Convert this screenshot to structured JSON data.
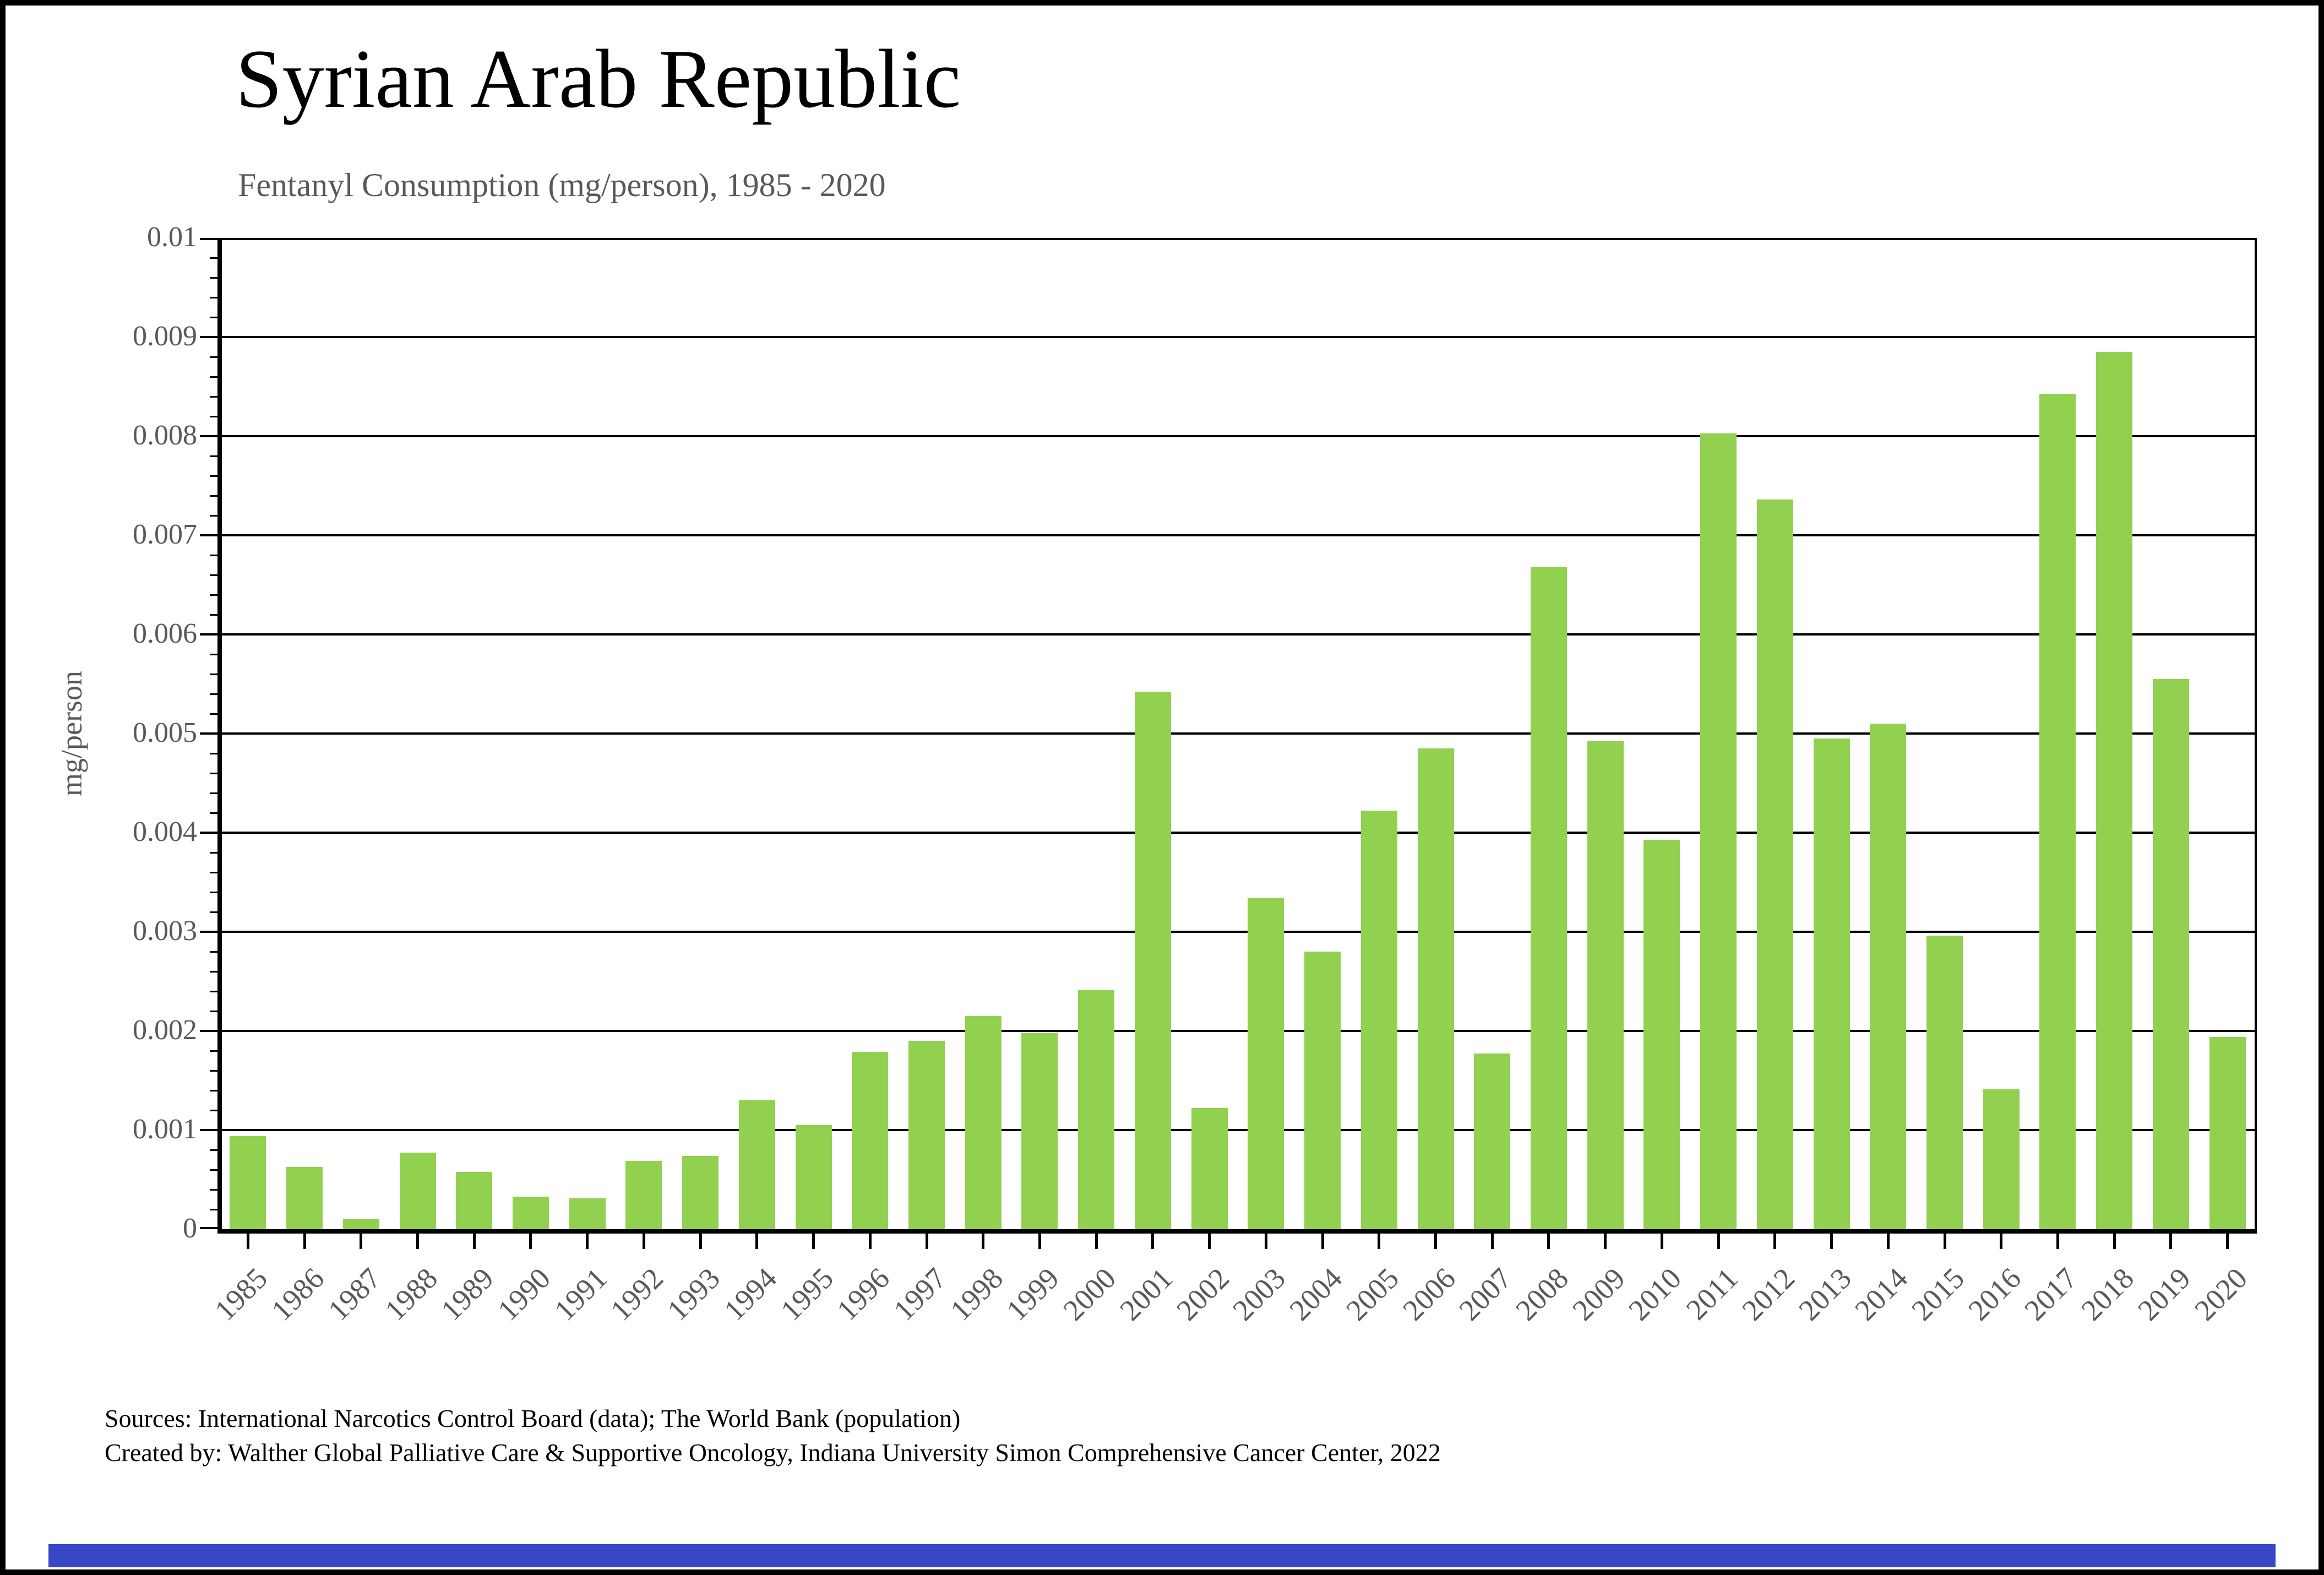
{
  "chart_data": {
    "type": "bar",
    "title": "Syrian Arab Republic",
    "subtitle": "Fentanyl Consumption (mg/person), 1985 - 2020",
    "ylabel": "mg/person",
    "xlabel": "",
    "categories": [
      "1985",
      "1986",
      "1987",
      "1988",
      "1989",
      "1990",
      "1991",
      "1992",
      "1993",
      "1994",
      "1995",
      "1996",
      "1997",
      "1998",
      "1999",
      "2000",
      "2001",
      "2002",
      "2003",
      "2004",
      "2005",
      "2006",
      "2007",
      "2008",
      "2009",
      "2010",
      "2011",
      "2012",
      "2013",
      "2014",
      "2015",
      "2016",
      "2017",
      "2018",
      "2019",
      "2020"
    ],
    "values": [
      0.00094,
      0.00063,
      0.0001,
      0.00077,
      0.00058,
      0.00033,
      0.00031,
      0.00069,
      0.00074,
      0.0013,
      0.00105,
      0.00179,
      0.0019,
      0.00215,
      0.00198,
      0.00241,
      0.00542,
      0.00122,
      0.00334,
      0.0028,
      0.00422,
      0.00485,
      0.00177,
      0.00668,
      0.00492,
      0.00393,
      0.00803,
      0.00736,
      0.00495,
      0.0051,
      0.00296,
      0.00141,
      0.00843,
      0.00885,
      0.00555,
      0.00194
    ],
    "ylim": [
      0,
      0.01
    ],
    "y_tick_interval": 0.001,
    "y_minor_tick_interval": 0.0002,
    "y_tick_labels": [
      "0",
      "0.001",
      "0.002",
      "0.003",
      "0.004",
      "0.005",
      "0.006",
      "0.007",
      "0.008",
      "0.009",
      "0.01"
    ],
    "grid": "horizontal-major-lines",
    "legend_position": "none",
    "bar_color": "#92D050"
  },
  "footer": {
    "line1": "Sources: International Narcotics Control Board (data); The World Bank (population)",
    "line2": "Created by: Walther Global Palliative Care & Supportive Oncology, Indiana University Simon Comprehensive Cancer Center, 2022"
  },
  "colors": {
    "bar_green": "#92D050",
    "axis_black": "#000000",
    "label_gray": "#595959",
    "bottom_bar_blue": "#3847C6"
  }
}
